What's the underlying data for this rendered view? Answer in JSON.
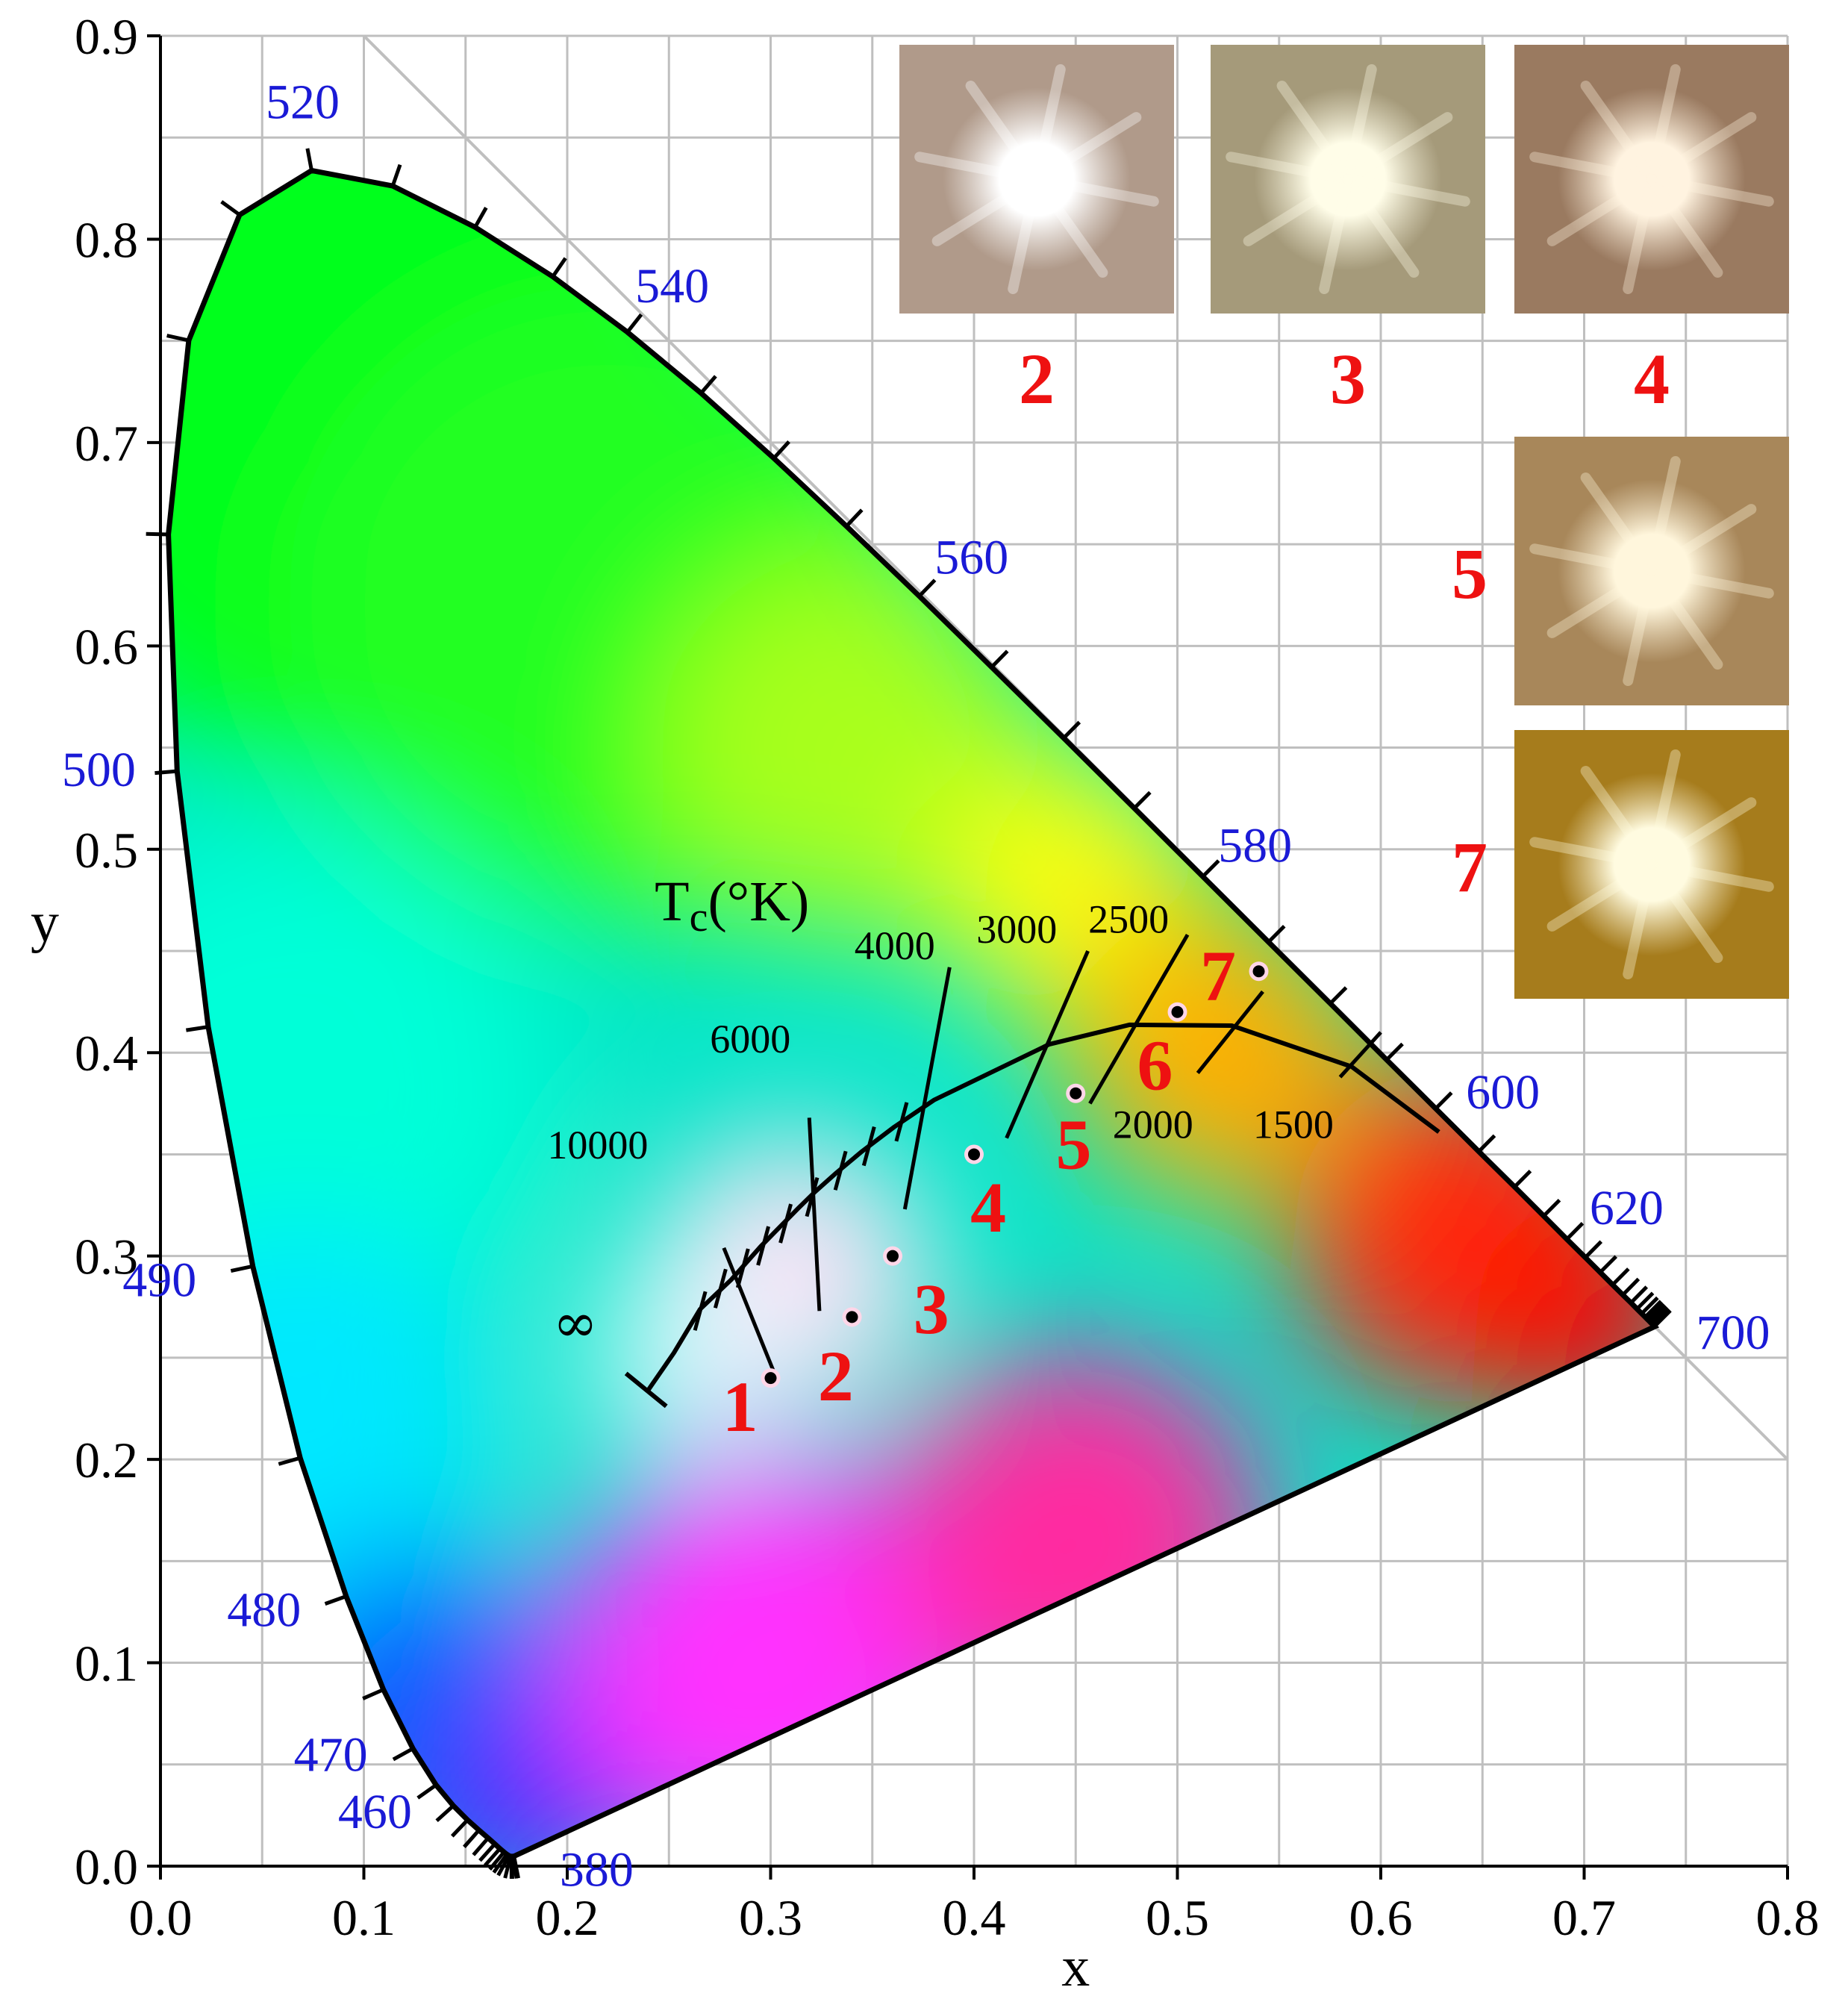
{
  "chart_data": {
    "type": "scatter",
    "title": "",
    "xlabel": "x",
    "ylabel": "y",
    "xlim": [
      0.0,
      0.8
    ],
    "ylim": [
      0.0,
      0.9
    ],
    "xticks": [
      "0.0",
      "0.1",
      "0.2",
      "0.3",
      "0.4",
      "0.5",
      "0.6",
      "0.7",
      "0.8"
    ],
    "yticks": [
      "0.0",
      "0.1",
      "0.2",
      "0.3",
      "0.4",
      "0.5",
      "0.6",
      "0.7",
      "0.8",
      "0.9"
    ],
    "grid": true,
    "planckian_title": "Tc(°K)",
    "planckian_title_base": "T",
    "planckian_title_sub": "c",
    "planckian_title_unit": "(°K)",
    "infinity_symbol": "∞",
    "spectral_locus": [
      [
        0.1741,
        0.005
      ],
      [
        0.1738,
        0.0049
      ],
      [
        0.1736,
        0.0049
      ],
      [
        0.1733,
        0.0048
      ],
      [
        0.173,
        0.0048
      ],
      [
        0.1726,
        0.0048
      ],
      [
        0.1721,
        0.0048
      ],
      [
        0.1714,
        0.0051
      ],
      [
        0.1703,
        0.0058
      ],
      [
        0.1689,
        0.0069
      ],
      [
        0.1669,
        0.0086
      ],
      [
        0.1644,
        0.0109
      ],
      [
        0.1611,
        0.0138
      ],
      [
        0.1566,
        0.0177
      ],
      [
        0.151,
        0.0227
      ],
      [
        0.144,
        0.0297
      ],
      [
        0.1355,
        0.0399
      ],
      [
        0.1241,
        0.0578
      ],
      [
        0.1096,
        0.0868
      ],
      [
        0.0913,
        0.1327
      ],
      [
        0.0687,
        0.2007
      ],
      [
        0.0454,
        0.295
      ],
      [
        0.0235,
        0.4127
      ],
      [
        0.0082,
        0.5384
      ],
      [
        0.0039,
        0.6548
      ],
      [
        0.0139,
        0.7502
      ],
      [
        0.0389,
        0.812
      ],
      [
        0.0743,
        0.8338
      ],
      [
        0.1142,
        0.8262
      ],
      [
        0.1547,
        0.8059
      ],
      [
        0.1929,
        0.7816
      ],
      [
        0.2296,
        0.7543
      ],
      [
        0.2658,
        0.7243
      ],
      [
        0.3016,
        0.6923
      ],
      [
        0.3373,
        0.6589
      ],
      [
        0.3731,
        0.6245
      ],
      [
        0.4087,
        0.5896
      ],
      [
        0.4441,
        0.5547
      ],
      [
        0.4788,
        0.5202
      ],
      [
        0.5125,
        0.4866
      ],
      [
        0.5448,
        0.4544
      ],
      [
        0.5752,
        0.4242
      ],
      [
        0.6029,
        0.3965
      ],
      [
        0.627,
        0.3725
      ],
      [
        0.6482,
        0.3514
      ],
      [
        0.6658,
        0.334
      ],
      [
        0.6801,
        0.3197
      ],
      [
        0.6915,
        0.3083
      ],
      [
        0.7006,
        0.2993
      ],
      [
        0.7079,
        0.292
      ],
      [
        0.714,
        0.2859
      ],
      [
        0.719,
        0.2809
      ],
      [
        0.723,
        0.277
      ],
      [
        0.726,
        0.274
      ],
      [
        0.7283,
        0.2717
      ],
      [
        0.73,
        0.27
      ],
      [
        0.7311,
        0.2689
      ],
      [
        0.732,
        0.268
      ],
      [
        0.7327,
        0.2673
      ],
      [
        0.7334,
        0.2666
      ],
      [
        0.734,
        0.266
      ],
      [
        0.7344,
        0.2656
      ],
      [
        0.7346,
        0.2654
      ],
      [
        0.7347,
        0.2653
      ]
    ],
    "wavelength_labels": [
      {
        "text": "520",
        "x": 0.0743,
        "y": 0.8338
      },
      {
        "text": "540",
        "x": 0.2296,
        "y": 0.7543
      },
      {
        "text": "560",
        "x": 0.3731,
        "y": 0.6245
      },
      {
        "text": "580",
        "x": 0.5125,
        "y": 0.4866
      },
      {
        "text": "600",
        "x": 0.627,
        "y": 0.3725
      },
      {
        "text": "620",
        "x": 0.6915,
        "y": 0.3083
      },
      {
        "text": "700",
        "x": 0.7347,
        "y": 0.2653
      },
      {
        "text": "500",
        "x": 0.0082,
        "y": 0.5384
      },
      {
        "text": "490",
        "x": 0.0454,
        "y": 0.295
      },
      {
        "text": "480",
        "x": 0.0913,
        "y": 0.1327
      },
      {
        "text": "470",
        "x": 0.1241,
        "y": 0.0578
      },
      {
        "text": "460",
        "x": 0.144,
        "y": 0.0297
      },
      {
        "text": "380",
        "x": 0.1741,
        "y": 0.005
      }
    ],
    "planckian_locus": [
      [
        0.2399,
        0.2342
      ],
      [
        0.2524,
        0.2523
      ],
      [
        0.2653,
        0.2738
      ],
      [
        0.2806,
        0.2883
      ],
      [
        0.2952,
        0.3048
      ],
      [
        0.3137,
        0.3236
      ],
      [
        0.3221,
        0.3318
      ],
      [
        0.3324,
        0.341
      ],
      [
        0.3451,
        0.3516
      ],
      [
        0.3608,
        0.3635
      ],
      [
        0.3805,
        0.3768
      ],
      [
        0.4369,
        0.4041
      ],
      [
        0.4764,
        0.4137
      ],
      [
        0.5267,
        0.4133
      ],
      [
        0.5857,
        0.3931
      ],
      [
        0.6286,
        0.361
      ]
    ],
    "isotherms": [
      {
        "label": "10000",
        "from": [
          0.277,
          0.304
        ],
        "to": [
          0.302,
          0.242
        ],
        "label_x": 0.215,
        "label_y": 0.348
      },
      {
        "label": "6000",
        "from": [
          0.319,
          0.368
        ],
        "to": [
          0.324,
          0.273
        ],
        "label_x": 0.29,
        "label_y": 0.4
      },
      {
        "label": "4000",
        "from": [
          0.388,
          0.442
        ],
        "to": [
          0.366,
          0.323
        ],
        "label_x": 0.361,
        "label_y": 0.446
      },
      {
        "label": "3000",
        "from": [
          0.456,
          0.45
        ],
        "to": [
          0.416,
          0.358
        ],
        "label_x": 0.421,
        "label_y": 0.454
      },
      {
        "label": "2500",
        "from": [
          0.505,
          0.458
        ],
        "to": [
          0.457,
          0.375
        ],
        "label_x": 0.476,
        "label_y": 0.459
      },
      {
        "label": "2000",
        "from": [
          0.542,
          0.43
        ],
        "to": [
          0.51,
          0.39
        ],
        "label_x": 0.488,
        "label_y": 0.358
      },
      {
        "label": "1500",
        "from": [
          0.6,
          0.41
        ],
        "to": [
          0.58,
          0.388
        ],
        "label_x": 0.557,
        "label_y": 0.358
      }
    ],
    "points": [
      {
        "label": "1",
        "x": 0.3,
        "y": 0.24,
        "label_x": 0.285,
        "label_y": 0.214
      },
      {
        "label": "2",
        "x": 0.34,
        "y": 0.27,
        "label_x": 0.332,
        "label_y": 0.229
      },
      {
        "label": "3",
        "x": 0.36,
        "y": 0.3,
        "label_x": 0.379,
        "label_y": 0.262
      },
      {
        "label": "4",
        "x": 0.4,
        "y": 0.35,
        "label_x": 0.407,
        "label_y": 0.312
      },
      {
        "label": "5",
        "x": 0.45,
        "y": 0.38,
        "label_x": 0.449,
        "label_y": 0.343
      },
      {
        "label": "6",
        "x": 0.5,
        "y": 0.42,
        "label_x": 0.489,
        "label_y": 0.382
      },
      {
        "label": "7",
        "x": 0.54,
        "y": 0.44,
        "label_x": 0.52,
        "label_y": 0.426
      }
    ],
    "insets": [
      {
        "label": "2",
        "tone": "#b09a8a",
        "core": "#ffffff",
        "col": 0,
        "row": 0
      },
      {
        "label": "3",
        "tone": "#a59a7a",
        "core": "#fffde8",
        "col": 1,
        "row": 0
      },
      {
        "label": "4",
        "tone": "#9a7a60",
        "core": "#fff3e0",
        "col": 2,
        "row": 0
      },
      {
        "label": "5",
        "tone": "#a8875a",
        "core": "#fff6dc",
        "col": 2,
        "row": 1
      },
      {
        "label": "7",
        "tone": "#a67c1c",
        "core": "#fffbe0",
        "col": 2,
        "row": 2
      }
    ],
    "colors": {
      "grid": "#bfbfbf",
      "wavelength_label": "#1a1ad6",
      "point_label": "#ee1111",
      "locus": "#000000"
    }
  }
}
